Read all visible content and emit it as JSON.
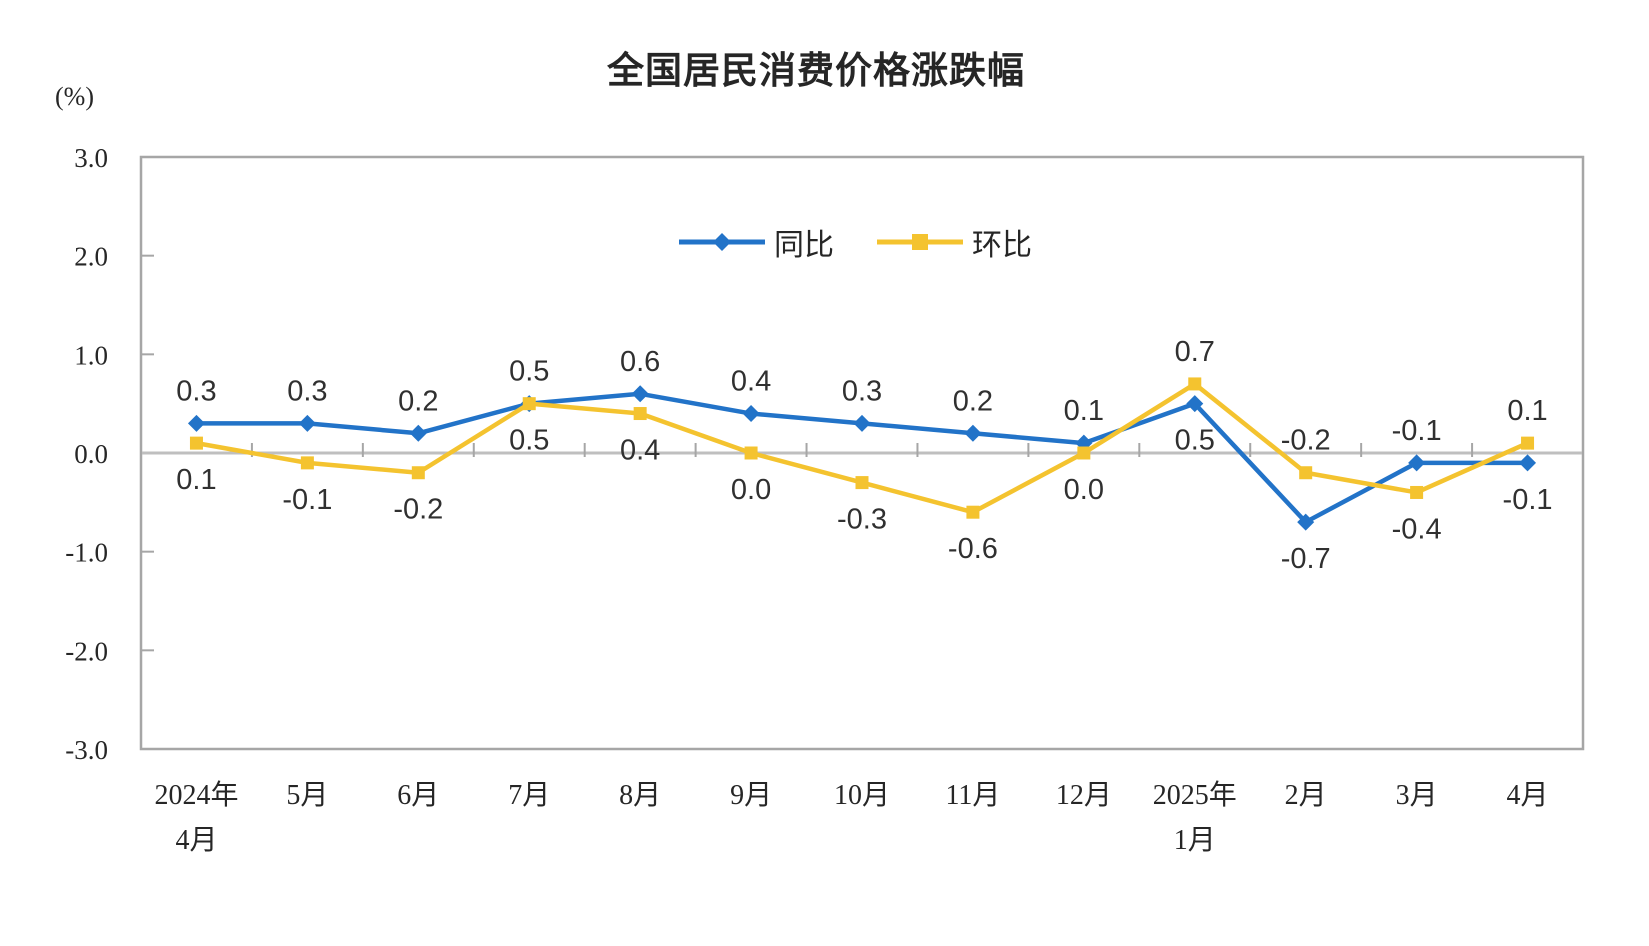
{
  "page": {
    "background": "#FFFFFF"
  },
  "chart_data": {
    "type": "line",
    "title": "全国居民消费价格涨跌幅",
    "unit_label": "(%)",
    "categories": [
      [
        "2024年",
        "4月"
      ],
      [
        "5月"
      ],
      [
        "6月"
      ],
      [
        "7月"
      ],
      [
        "8月"
      ],
      [
        "9月"
      ],
      [
        "10月"
      ],
      [
        "11月"
      ],
      [
        "12月"
      ],
      [
        "2025年",
        "1月"
      ],
      [
        "2月"
      ],
      [
        "3月"
      ],
      [
        "4月"
      ]
    ],
    "series": [
      {
        "name": "同比",
        "marker": "diamond",
        "color": "#2273C8",
        "values": [
          0.3,
          0.3,
          0.2,
          0.5,
          0.6,
          0.4,
          0.3,
          0.2,
          0.1,
          0.5,
          -0.7,
          -0.1,
          -0.1
        ]
      },
      {
        "name": "环比",
        "marker": "square",
        "color": "#F4C32F",
        "values": [
          0.1,
          -0.1,
          -0.2,
          0.5,
          0.4,
          0.0,
          -0.3,
          -0.6,
          0.0,
          0.7,
          -0.2,
          -0.4,
          0.1
        ]
      }
    ],
    "ylim": [
      -3.0,
      3.0
    ],
    "ytick_values": [
      3.0,
      2.0,
      1.0,
      0.0,
      -1.0,
      -2.0,
      -3.0
    ],
    "ytick_labels": [
      "3.0",
      "2.0",
      "1.0",
      "0.0",
      "-1.0",
      "-2.0",
      "-3.0"
    ],
    "grid": false,
    "legend_position": "top-center-inside",
    "axis_color": "#A6A6A6",
    "zero_line_color": "#BFBFBF",
    "text_color": "#262626",
    "data_label_color": "#303030"
  }
}
